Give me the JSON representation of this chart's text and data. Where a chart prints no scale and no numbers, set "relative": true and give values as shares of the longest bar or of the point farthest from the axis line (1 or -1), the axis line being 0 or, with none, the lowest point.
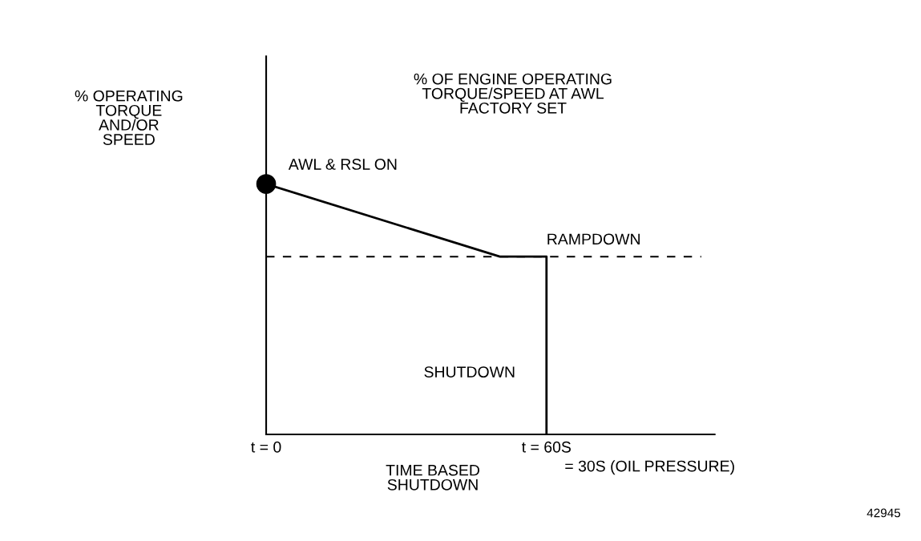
{
  "chart_data": {
    "type": "line",
    "relative": true,
    "title": "% OF ENGINE OPERATING\nTORQUE/SPEED AT AWL\nFACTORY SET",
    "xlabel": "TIME BASED\nSHUTDOWN",
    "xlim": [
      0,
      96
    ],
    "xticks": [
      {
        "value": 0,
        "label": "t = 0"
      },
      {
        "value": 60,
        "label": "t = 60S"
      }
    ],
    "series": [
      {
        "color": "#000000",
        "x": [
          0,
          50,
          60,
          60
        ],
        "values": [
          1,
          0.71,
          0.71,
          0
        ],
        "marker": "none",
        "line_style": "solid"
      },
      {
        "type": "scatter",
        "color": "#000000",
        "x": [
          0
        ],
        "values": [
          1
        ],
        "marker": "circle"
      }
    ],
    "ref_lines": [
      {
        "axis": "y",
        "value": 0.71,
        "color": "#000000",
        "line_style": "dashed"
      }
    ],
    "annotations": [
      {
        "text": "AWL & RSL ON",
        "x": 0,
        "y": 1
      },
      {
        "text": "RAMPDOWN",
        "x": 60,
        "y": 0.71
      },
      "% OPERATING\nTORQUE\nAND/OR\nSPEED",
      "SHUTDOWN",
      "= 30S (OIL PRESSURE)",
      "42945"
    ],
    "grid": false,
    "legend": false
  }
}
